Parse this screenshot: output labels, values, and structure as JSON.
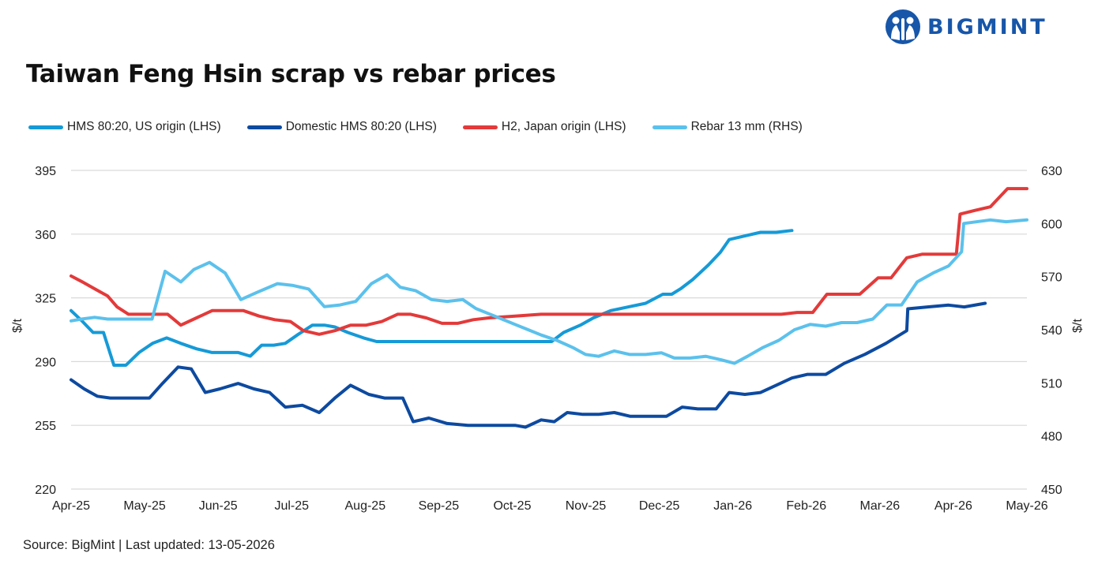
{
  "brand": {
    "name": "BIGMINT",
    "color": "#1756a9",
    "logo_icon": "bigmint-people-icon"
  },
  "footer": {
    "source": "Source: BigMint |  Last updated: 13-05-2026"
  },
  "chart_data": {
    "type": "line",
    "title": "Taiwan Feng Hsin scrap vs rebar prices",
    "ylabel": "$/t",
    "y2label": "$/t",
    "ylim": [
      220,
      395
    ],
    "y2lim": [
      450,
      630
    ],
    "yticks": [
      220,
      255,
      290,
      325,
      360,
      395
    ],
    "y2ticks": [
      450,
      480,
      510,
      540,
      570,
      600,
      630
    ],
    "grid": true,
    "legend_position": "top-left",
    "categories": [
      "Apr-25",
      "May-25",
      "Jun-25",
      "Jul-25",
      "Aug-25",
      "Sep-25",
      "Oct-25",
      "Nov-25",
      "Dec-25",
      "Jan-26",
      "Feb-26",
      "Mar-26",
      "Apr-26",
      "May-26"
    ],
    "series": [
      {
        "name": "HMS 80:20, US origin (LHS)",
        "axis": "left",
        "color": "#159ad7",
        "points": [
          [
            0,
            318
          ],
          [
            0.22,
            312
          ],
          [
            0.42,
            306
          ],
          [
            0.62,
            306
          ],
          [
            0.82,
            288
          ],
          [
            1.05,
            288
          ],
          [
            1.3,
            295
          ],
          [
            1.56,
            300
          ],
          [
            1.83,
            303
          ],
          [
            2.1,
            300
          ],
          [
            2.4,
            297
          ],
          [
            2.7,
            295
          ],
          [
            2.95,
            295
          ],
          [
            3.2,
            295
          ],
          [
            3.43,
            293
          ],
          [
            3.65,
            299
          ],
          [
            3.88,
            299
          ],
          [
            4.1,
            300
          ],
          [
            4.35,
            305
          ],
          [
            4.62,
            310
          ],
          [
            4.85,
            310
          ],
          [
            5.05,
            309
          ],
          [
            5.3,
            306
          ],
          [
            5.6,
            303
          ],
          [
            5.85,
            301
          ],
          [
            6.2,
            301
          ],
          [
            6.6,
            301
          ],
          [
            7.0,
            301
          ],
          [
            7.5,
            301
          ],
          [
            8.0,
            301
          ],
          [
            8.5,
            301
          ],
          [
            9.0,
            301
          ],
          [
            9.2,
            301
          ],
          [
            9.43,
            306
          ],
          [
            9.75,
            310
          ],
          [
            10.0,
            314
          ],
          [
            10.33,
            318
          ],
          [
            10.67,
            320
          ],
          [
            11.0,
            322
          ],
          [
            11.33,
            327
          ],
          [
            11.5,
            327
          ],
          [
            11.67,
            330
          ],
          [
            11.9,
            335
          ],
          [
            12.2,
            343
          ],
          [
            12.43,
            350
          ],
          [
            12.6,
            357
          ],
          [
            12.9,
            359
          ],
          [
            13.2,
            361
          ],
          [
            13.5,
            361
          ],
          [
            13.8,
            362
          ]
        ]
      },
      {
        "name": "Domestic HMS 80:20 (LHS)",
        "axis": "left",
        "color": "#0d4aa0",
        "points": [
          [
            0,
            280
          ],
          [
            0.25,
            275
          ],
          [
            0.5,
            271
          ],
          [
            0.75,
            270
          ],
          [
            1.0,
            270
          ],
          [
            1.25,
            270
          ],
          [
            1.5,
            270
          ],
          [
            1.75,
            278
          ],
          [
            2.05,
            287
          ],
          [
            2.3,
            286
          ],
          [
            2.57,
            273
          ],
          [
            2.85,
            275
          ],
          [
            3.2,
            278
          ],
          [
            3.5,
            275
          ],
          [
            3.8,
            273
          ],
          [
            4.1,
            265
          ],
          [
            4.43,
            266
          ],
          [
            4.75,
            262
          ],
          [
            5.05,
            270
          ],
          [
            5.35,
            277
          ],
          [
            5.7,
            272
          ],
          [
            6.0,
            270
          ],
          [
            6.35,
            270
          ],
          [
            6.55,
            257
          ],
          [
            6.85,
            259
          ],
          [
            7.2,
            256
          ],
          [
            7.6,
            255
          ],
          [
            8.0,
            255
          ],
          [
            8.5,
            255
          ],
          [
            8.7,
            254
          ],
          [
            9.0,
            258
          ],
          [
            9.25,
            257
          ],
          [
            9.5,
            262
          ],
          [
            9.8,
            261
          ],
          [
            10.1,
            261
          ],
          [
            10.4,
            262
          ],
          [
            10.7,
            260
          ],
          [
            11.0,
            260
          ],
          [
            11.4,
            260
          ],
          [
            11.7,
            265
          ],
          [
            12.0,
            264
          ],
          [
            12.35,
            264
          ],
          [
            12.6,
            273
          ],
          [
            12.9,
            272
          ],
          [
            13.2,
            273
          ],
          [
            13.5,
            277
          ],
          [
            13.8,
            281
          ],
          [
            14.1,
            283
          ],
          [
            14.45,
            283
          ],
          [
            14.8,
            289
          ],
          [
            15.2,
            294
          ],
          [
            15.6,
            300
          ],
          [
            16.0,
            307
          ],
          [
            16.02,
            319
          ],
          [
            16.4,
            320
          ],
          [
            16.8,
            321
          ],
          [
            17.1,
            320
          ],
          [
            17.5,
            322
          ]
        ]
      },
      {
        "name": "H2, Japan origin (LHS)",
        "axis": "left",
        "color": "#e33a3a",
        "points": [
          [
            0,
            337
          ],
          [
            0.2,
            334
          ],
          [
            0.45,
            330
          ],
          [
            0.7,
            326
          ],
          [
            0.88,
            320
          ],
          [
            1.1,
            316
          ],
          [
            1.3,
            316
          ],
          [
            1.6,
            316
          ],
          [
            1.85,
            316
          ],
          [
            2.1,
            310
          ],
          [
            2.4,
            314
          ],
          [
            2.7,
            318
          ],
          [
            3.0,
            318
          ],
          [
            3.3,
            318
          ],
          [
            3.6,
            315
          ],
          [
            3.9,
            313
          ],
          [
            4.2,
            312
          ],
          [
            4.45,
            307
          ],
          [
            4.75,
            305
          ],
          [
            5.05,
            307
          ],
          [
            5.35,
            310
          ],
          [
            5.65,
            310
          ],
          [
            5.95,
            312
          ],
          [
            6.25,
            316
          ],
          [
            6.5,
            316
          ],
          [
            6.8,
            314
          ],
          [
            7.1,
            311
          ],
          [
            7.4,
            311
          ],
          [
            7.7,
            313
          ],
          [
            8.0,
            314
          ],
          [
            8.5,
            315
          ],
          [
            9.0,
            316
          ],
          [
            9.5,
            316
          ],
          [
            10.0,
            316
          ],
          [
            10.5,
            316
          ],
          [
            11.0,
            316
          ],
          [
            11.5,
            316
          ],
          [
            12.0,
            316
          ],
          [
            12.5,
            316
          ],
          [
            13.0,
            316
          ],
          [
            13.3,
            316
          ],
          [
            13.6,
            316
          ],
          [
            13.9,
            317
          ],
          [
            14.2,
            317
          ],
          [
            14.47,
            327
          ],
          [
            14.8,
            327
          ],
          [
            15.1,
            327
          ],
          [
            15.45,
            336
          ],
          [
            15.7,
            336
          ],
          [
            16.0,
            347
          ],
          [
            16.3,
            349
          ],
          [
            16.6,
            349
          ],
          [
            16.95,
            349
          ],
          [
            17.02,
            371
          ],
          [
            17.3,
            373
          ],
          [
            17.6,
            375
          ],
          [
            17.93,
            385
          ],
          [
            18.3,
            385
          ]
        ]
      },
      {
        "name": "Rebar 13 mm (RHS)",
        "axis": "right",
        "color": "#5bc1ec",
        "points": [
          [
            0,
            545
          ],
          [
            0.2,
            546
          ],
          [
            0.45,
            547
          ],
          [
            0.7,
            546
          ],
          [
            0.9,
            546
          ],
          [
            1.05,
            546
          ],
          [
            1.2,
            546
          ],
          [
            1.4,
            546
          ],
          [
            1.55,
            546
          ],
          [
            1.8,
            573
          ],
          [
            2.1,
            567
          ],
          [
            2.35,
            574
          ],
          [
            2.65,
            578
          ],
          [
            2.95,
            572
          ],
          [
            3.25,
            557
          ],
          [
            3.55,
            561
          ],
          [
            3.95,
            566
          ],
          [
            4.25,
            565
          ],
          [
            4.55,
            563
          ],
          [
            4.85,
            553
          ],
          [
            5.15,
            554
          ],
          [
            5.45,
            556
          ],
          [
            5.75,
            566
          ],
          [
            6.05,
            571
          ],
          [
            6.3,
            564
          ],
          [
            6.6,
            562
          ],
          [
            6.9,
            557
          ],
          [
            7.2,
            556
          ],
          [
            7.5,
            557
          ],
          [
            7.75,
            552
          ],
          [
            8.0,
            549
          ],
          [
            8.25,
            546
          ],
          [
            8.5,
            543
          ],
          [
            8.75,
            540
          ],
          [
            9.0,
            537
          ],
          [
            9.3,
            534
          ],
          [
            9.6,
            530
          ],
          [
            9.85,
            526
          ],
          [
            10.1,
            525
          ],
          [
            10.4,
            528
          ],
          [
            10.7,
            526
          ],
          [
            11.0,
            526
          ],
          [
            11.3,
            527
          ],
          [
            11.55,
            524
          ],
          [
            11.85,
            524
          ],
          [
            12.15,
            525
          ],
          [
            12.45,
            523
          ],
          [
            12.7,
            521
          ],
          [
            12.95,
            525
          ],
          [
            13.25,
            530
          ],
          [
            13.55,
            534
          ],
          [
            13.85,
            540
          ],
          [
            14.15,
            543
          ],
          [
            14.45,
            542
          ],
          [
            14.75,
            544
          ],
          [
            15.05,
            544
          ],
          [
            15.35,
            546
          ],
          [
            15.62,
            554
          ],
          [
            15.9,
            554
          ],
          [
            16.2,
            567
          ],
          [
            16.5,
            572
          ],
          [
            16.8,
            576
          ],
          [
            17.05,
            584
          ],
          [
            17.09,
            600
          ],
          [
            17.6,
            602
          ],
          [
            17.9,
            601
          ],
          [
            18.3,
            602
          ]
        ]
      }
    ]
  }
}
